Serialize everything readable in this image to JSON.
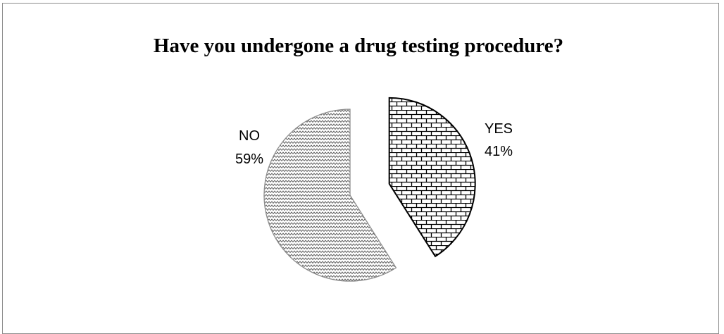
{
  "chart_data": {
    "type": "pie",
    "title": "Have you undergone a drug testing procedure?",
    "slices": [
      {
        "name": "YES",
        "value": 41,
        "value_label": "41%",
        "pattern": "brick",
        "exploded": true
      },
      {
        "name": "NO",
        "value": 59,
        "value_label": "59%",
        "pattern": "zigzag",
        "exploded": false
      }
    ],
    "legend": "none",
    "colors": {
      "yes_fill": "#ffffff",
      "yes_stroke": "#000000",
      "no_fill": "#ffffff",
      "no_stroke": "#8c8c8c"
    }
  }
}
